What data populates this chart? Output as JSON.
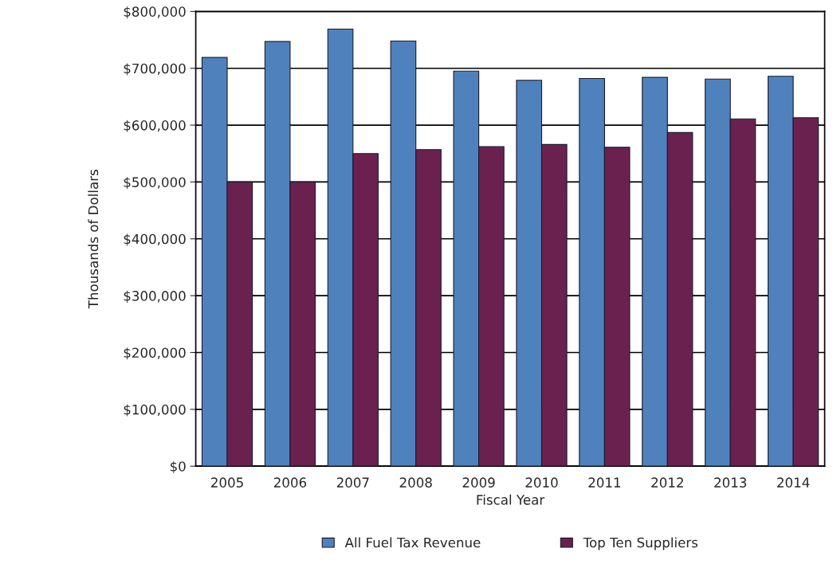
{
  "chart_data": {
    "type": "bar",
    "xlabel": "Fiscal Year",
    "ylabel": "Thousands of Dollars",
    "categories": [
      "2005",
      "2006",
      "2007",
      "2008",
      "2009",
      "2010",
      "2011",
      "2012",
      "2013",
      "2014"
    ],
    "series": [
      {
        "name": "All Fuel Tax Revenue",
        "color": "#4f81bd",
        "values": [
          719000,
          747000,
          769000,
          748000,
          695000,
          679000,
          682000,
          684000,
          681000,
          686000
        ]
      },
      {
        "name": "Top Ten Suppliers",
        "color": "#6b2150",
        "values": [
          500000,
          500000,
          550000,
          557000,
          562000,
          566000,
          561000,
          587000,
          611000,
          613000
        ]
      }
    ],
    "ylim": [
      0,
      800000
    ],
    "yticks": [
      {
        "value": 0,
        "label": "$0"
      },
      {
        "value": 100000,
        "label": "$100,000"
      },
      {
        "value": 200000,
        "label": "$200,000"
      },
      {
        "value": 300000,
        "label": "$300,000"
      },
      {
        "value": 400000,
        "label": "$400,000"
      },
      {
        "value": 500000,
        "label": "$500,000"
      },
      {
        "value": 600000,
        "label": "$600,000"
      },
      {
        "value": 700000,
        "label": "$700,000"
      },
      {
        "value": 800000,
        "label": "$800,000"
      }
    ],
    "grid": "y",
    "legend": "bottom"
  }
}
